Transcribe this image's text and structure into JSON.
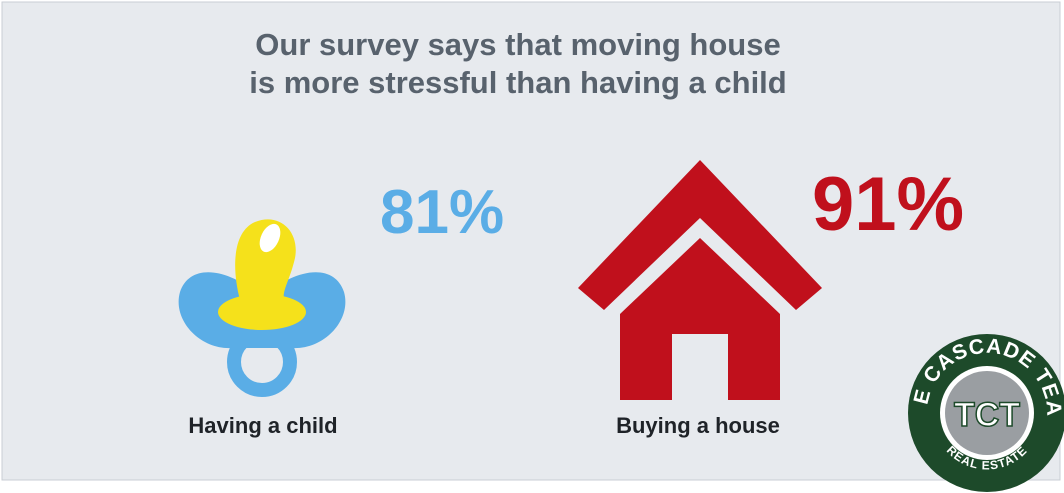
{
  "header": {
    "title_lines": [
      "Our survey says that moving house",
      "is more stressful than having a child"
    ]
  },
  "items": [
    {
      "label": "Having a child",
      "percent": "81%"
    },
    {
      "label": "Buying a house",
      "percent": "91%"
    }
  ],
  "logo": {
    "top_text": "THE CASCADE TEAM",
    "bottom_text": "REAL ESTATE",
    "monogram": "TCT"
  }
}
